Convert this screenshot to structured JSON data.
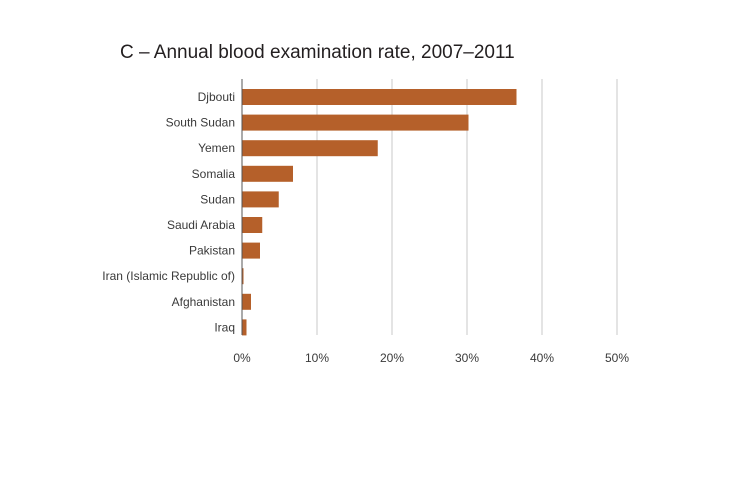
{
  "chart_data": {
    "type": "bar",
    "orientation": "horizontal",
    "title": "C – Annual blood examination rate, 2007–2011",
    "xlabel": "",
    "ylabel": "",
    "categories": [
      "Djbouti",
      "South Sudan",
      "Yemen",
      "Somalia",
      "Sudan",
      "Saudi Arabia",
      "Pakistan",
      "Iran (Islamic Republic of)",
      "Afghanistan",
      "Iraq"
    ],
    "values": [
      36.6,
      30.2,
      18.1,
      6.8,
      4.9,
      2.7,
      2.4,
      0.2,
      1.2,
      0.6
    ],
    "xlim": [
      0,
      50
    ],
    "ticks": [
      0,
      10,
      20,
      30,
      40,
      50
    ],
    "tick_labels": [
      "0%",
      "10%",
      "20%",
      "30%",
      "40%",
      "50%"
    ],
    "grid": true,
    "legend": "none",
    "bar_color": "#b5602a",
    "grid_color": "#c8c8c8"
  }
}
